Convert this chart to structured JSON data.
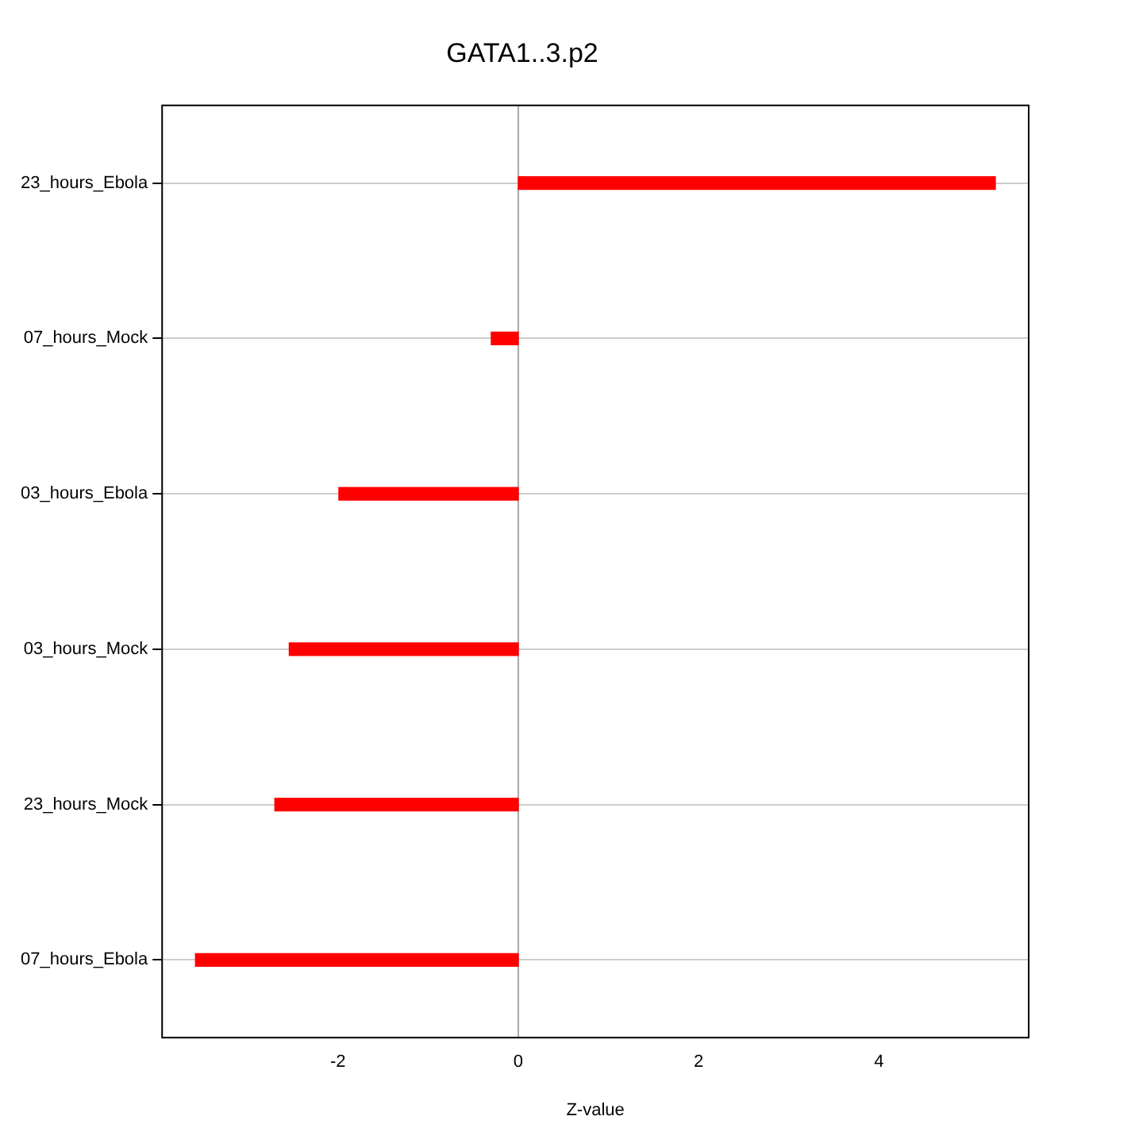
{
  "chart_data": {
    "type": "bar",
    "orientation": "horizontal",
    "title": "GATA1..3.p2",
    "xlabel": "Z-value",
    "categories": [
      "23_hours_Ebola",
      "07_hours_Mock",
      "03_hours_Ebola",
      "03_hours_Mock",
      "23_hours_Mock",
      "07_hours_Ebola"
    ],
    "values": [
      5.29,
      -0.3,
      -1.99,
      -2.54,
      -2.7,
      -3.58
    ],
    "color": "#ff0000",
    "xlim": [
      -3.95,
      5.66
    ],
    "xticks": [
      -2,
      0,
      2,
      4
    ],
    "grid": "y",
    "ref_lines": [
      {
        "axis": "x",
        "value": 0,
        "color": "#aaaaaa"
      }
    ]
  }
}
